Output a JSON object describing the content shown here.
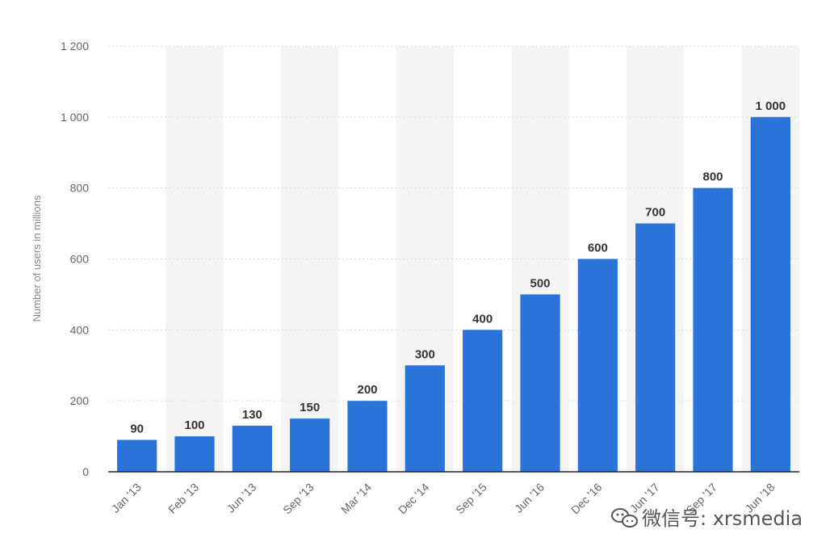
{
  "chart_data": {
    "type": "bar",
    "categories": [
      "Jan '13",
      "Feb '13",
      "Jun '13",
      "Sep '13",
      "Mar '14",
      "Dec '14",
      "Sep '15",
      "Jun '16",
      "Dec '16",
      "Jun '17",
      "Sep '17",
      "Jun '18"
    ],
    "values": [
      90,
      100,
      130,
      150,
      200,
      300,
      400,
      500,
      600,
      700,
      800,
      1000
    ],
    "value_labels": [
      "90",
      "100",
      "130",
      "150",
      "200",
      "300",
      "400",
      "500",
      "600",
      "700",
      "800",
      "1 000"
    ],
    "title": "",
    "xlabel": "",
    "ylabel": "Number of users in millions",
    "ylim": [
      0,
      1200
    ],
    "yticks": [
      0,
      200,
      400,
      600,
      800,
      1000,
      1200
    ],
    "ytick_labels": [
      "0",
      "200",
      "400",
      "600",
      "800",
      "1 000",
      "1 200"
    ],
    "grid": true,
    "alternating_column_bands": true,
    "bar_color": "#2a73d9",
    "band_color": "#f4f4f4"
  },
  "watermark": {
    "icon": "wechat-icon",
    "text": "微信号: xrsmedia"
  }
}
